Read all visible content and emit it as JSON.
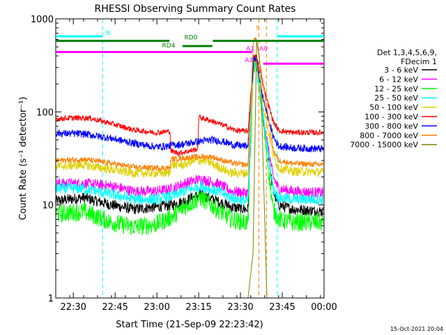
{
  "chart_data": {
    "type": "line",
    "title": "RHESSI Observing Summary Count Rates",
    "xlabel": "Start Time (21-Sep-09 22:23:42)",
    "ylabel": "Count Rate (s⁻¹ detector⁻¹)",
    "yscale": "log",
    "ylim": [
      1,
      1000
    ],
    "xlim_minutes": [
      0,
      96.3
    ],
    "x_tick_labels": [
      {
        "label": "22:30",
        "minute": 6.3
      },
      {
        "label": "22:45",
        "minute": 21.3
      },
      {
        "label": "23:00",
        "minute": 36.3
      },
      {
        "label": "23:15",
        "minute": 51.3
      },
      {
        "label": "23:30",
        "minute": 66.3
      },
      {
        "label": "23:45",
        "minute": 81.3
      },
      {
        "label": "00:00",
        "minute": 96.3
      }
    ],
    "y_tick_labels": [
      {
        "label": "1",
        "value": 1
      },
      {
        "label": "10",
        "value": 10
      },
      {
        "label": "100",
        "value": 100
      },
      {
        "label": "1000",
        "value": 1000
      }
    ],
    "legend": {
      "title_lines": [
        "Det 1,3,4,5,6,9,",
        "FDecim 1"
      ],
      "placement": "right"
    },
    "series": [
      {
        "name": "3 - 6 keV",
        "color": "#000000",
        "noise": 0.06,
        "points": [
          [
            0,
            11
          ],
          [
            10,
            12
          ],
          [
            20,
            10
          ],
          [
            28,
            9
          ],
          [
            36,
            9.5
          ],
          [
            42,
            10
          ],
          [
            46,
            11
          ],
          [
            52,
            13
          ],
          [
            58,
            11
          ],
          [
            63,
            9.5
          ],
          [
            68,
            9
          ],
          [
            69,
            9
          ],
          [
            71,
            350
          ],
          [
            72,
            360
          ],
          [
            74,
            100
          ],
          [
            76,
            40
          ],
          [
            78,
            14
          ],
          [
            80,
            10
          ],
          [
            85,
            9
          ],
          [
            96,
            8.5
          ]
        ]
      },
      {
        "name": "6 - 12 keV",
        "color": "#ff00ff",
        "noise": 0.06,
        "points": [
          [
            0,
            17
          ],
          [
            10,
            17
          ],
          [
            20,
            16
          ],
          [
            28,
            14
          ],
          [
            36,
            14
          ],
          [
            42,
            15
          ],
          [
            46,
            17
          ],
          [
            52,
            19
          ],
          [
            58,
            17
          ],
          [
            63,
            14
          ],
          [
            68,
            13.5
          ],
          [
            69,
            13.5
          ],
          [
            71,
            300
          ],
          [
            72,
            350
          ],
          [
            74,
            110
          ],
          [
            76,
            45
          ],
          [
            78,
            20
          ],
          [
            80,
            15
          ],
          [
            85,
            14
          ],
          [
            96,
            13.5
          ]
        ]
      },
      {
        "name": "12 - 25 keV",
        "color": "#00ff00",
        "noise": 0.1,
        "points": [
          [
            0,
            8
          ],
          [
            10,
            8.5
          ],
          [
            20,
            6.5
          ],
          [
            28,
            5.8
          ],
          [
            36,
            6.2
          ],
          [
            42,
            7.5
          ],
          [
            46,
            9.5
          ],
          [
            52,
            12
          ],
          [
            58,
            9
          ],
          [
            63,
            7
          ],
          [
            68,
            6.5
          ],
          [
            69,
            6.5
          ],
          [
            71,
            320
          ],
          [
            72,
            340
          ],
          [
            74,
            100
          ],
          [
            76,
            30
          ],
          [
            78,
            9
          ],
          [
            80,
            7
          ],
          [
            85,
            6.5
          ],
          [
            96,
            6.5
          ]
        ]
      },
      {
        "name": "25 - 50 keV",
        "color": "#00ffff",
        "noise": 0.06,
        "points": [
          [
            0,
            15
          ],
          [
            10,
            15
          ],
          [
            20,
            13
          ],
          [
            28,
            11.5
          ],
          [
            36,
            11.5
          ],
          [
            42,
            12.5
          ],
          [
            46,
            14
          ],
          [
            52,
            16
          ],
          [
            58,
            14
          ],
          [
            63,
            12
          ],
          [
            68,
            11
          ],
          [
            69,
            11
          ],
          [
            71,
            330
          ],
          [
            72,
            350
          ],
          [
            74,
            110
          ],
          [
            76,
            40
          ],
          [
            78,
            15
          ],
          [
            80,
            12
          ],
          [
            85,
            11.5
          ],
          [
            96,
            11.5
          ]
        ]
      },
      {
        "name": "50 - 100 keV",
        "color": "#e0d000",
        "noise": 0.05,
        "points": [
          [
            0,
            26
          ],
          [
            10,
            27
          ],
          [
            20,
            24
          ],
          [
            28,
            22
          ],
          [
            36,
            22
          ],
          [
            41,
            22
          ],
          [
            41.3,
            27
          ],
          [
            46,
            27
          ],
          [
            48,
            29
          ],
          [
            51,
            30
          ],
          [
            54,
            30
          ],
          [
            58,
            26
          ],
          [
            63,
            22
          ],
          [
            68,
            22
          ],
          [
            69,
            22
          ],
          [
            71,
            330
          ],
          [
            72,
            370
          ],
          [
            74,
            140
          ],
          [
            76,
            70
          ],
          [
            78,
            35
          ],
          [
            80,
            25
          ],
          [
            85,
            23
          ],
          [
            96,
            22.5
          ]
        ]
      },
      {
        "name": "100 - 300 keV",
        "color": "#ff0000",
        "noise": 0.03,
        "points": [
          [
            0,
            84
          ],
          [
            5,
            86
          ],
          [
            12,
            86
          ],
          [
            20,
            75
          ],
          [
            28,
            64
          ],
          [
            36,
            60
          ],
          [
            41,
            62
          ],
          [
            41.3,
            38
          ],
          [
            44,
            36
          ],
          [
            48,
            38
          ],
          [
            51,
            40
          ],
          [
            51.3,
            88
          ],
          [
            56,
            80
          ],
          [
            60,
            72
          ],
          [
            64,
            64
          ],
          [
            68,
            62
          ],
          [
            69,
            62
          ],
          [
            71,
            380
          ],
          [
            72,
            400
          ],
          [
            74,
            220
          ],
          [
            76,
            130
          ],
          [
            78,
            80
          ],
          [
            80,
            63
          ],
          [
            85,
            60
          ],
          [
            96,
            60
          ]
        ]
      },
      {
        "name": "300 - 800 keV",
        "color": "#0000ff",
        "noise": 0.04,
        "points": [
          [
            0,
            59
          ],
          [
            10,
            58
          ],
          [
            20,
            52
          ],
          [
            28,
            46
          ],
          [
            36,
            42
          ],
          [
            41,
            43
          ],
          [
            41.3,
            44
          ],
          [
            46,
            45
          ],
          [
            51,
            48
          ],
          [
            56,
            50
          ],
          [
            60,
            48
          ],
          [
            64,
            44
          ],
          [
            68,
            43
          ],
          [
            69,
            43
          ],
          [
            71,
            360
          ],
          [
            72,
            380
          ],
          [
            74,
            160
          ],
          [
            76,
            90
          ],
          [
            78,
            55
          ],
          [
            80,
            43
          ],
          [
            85,
            41
          ],
          [
            96,
            40
          ]
        ]
      },
      {
        "name": "800 - 7000 keV",
        "color": "#ff8000",
        "noise": 0.03,
        "points": [
          [
            0,
            30
          ],
          [
            10,
            31
          ],
          [
            20,
            28
          ],
          [
            28,
            25.5
          ],
          [
            36,
            25
          ],
          [
            41,
            25
          ],
          [
            41.3,
            31
          ],
          [
            46,
            32
          ],
          [
            51,
            33
          ],
          [
            56,
            33
          ],
          [
            60,
            30
          ],
          [
            64,
            28
          ],
          [
            68,
            27
          ],
          [
            69,
            27
          ],
          [
            71,
            600
          ],
          [
            72,
            610
          ],
          [
            74,
            250
          ],
          [
            76,
            100
          ],
          [
            78,
            40
          ],
          [
            80,
            30
          ],
          [
            85,
            28
          ],
          [
            96,
            27
          ]
        ]
      },
      {
        "name": "7000 - 15000 keV",
        "color": "#808000",
        "noise": 0.0,
        "points": [
          [
            69,
            1
          ],
          [
            70.8,
            3
          ],
          [
            72.1,
            600
          ],
          [
            73.5,
            300
          ],
          [
            75.8,
            1
          ]
        ]
      }
    ],
    "annotations": {
      "bars": [
        {
          "label": "N",
          "color": "#00ffff",
          "y": 650,
          "ranges": [
            [
              0,
              16.8
            ],
            [
              79.5,
              96.3
            ]
          ],
          "label_minute": 18.7
        },
        {
          "label": "RD0",
          "color": "#008000",
          "y": 580,
          "ranges": [
            [
              0,
              40.8
            ],
            [
              56.4,
              96.3
            ]
          ],
          "label_minute": 48.5
        },
        {
          "label": "RD4",
          "color": "#008000",
          "y": 510,
          "ranges": [
            [
              45.5,
              56.2
            ]
          ],
          "label_minute": 40.5
        },
        {
          "label": "A1",
          "color": "#ff00ff",
          "y": 440,
          "ranges": [
            [
              0,
              70.5
            ]
          ],
          "label_minute": 69.8
        },
        {
          "label": "A0",
          "color": "#ff00ff",
          "y": 440,
          "ranges": [],
          "label_minute": 74.6
        },
        {
          "label": "A3",
          "color": "#ff00ff",
          "y": 330,
          "ranges": [
            [
              74.5,
              96.3
            ]
          ],
          "label_minute": 69.3
        }
      ],
      "s_marker": {
        "label": "S",
        "color": "#ff8000",
        "minute": 72.5
      },
      "vlines": [
        {
          "minute": 16.8,
          "color": "#00ffff"
        },
        {
          "minute": 79.5,
          "color": "#00ffff"
        },
        {
          "minute": 96.3,
          "color": "#00ffff"
        },
        {
          "minute": 72.9,
          "color": "#ff8000"
        },
        {
          "minute": 75.6,
          "color": "#ff8000"
        }
      ]
    }
  },
  "footer": {
    "date_stamp": "15-Oct-2021 20:04"
  }
}
